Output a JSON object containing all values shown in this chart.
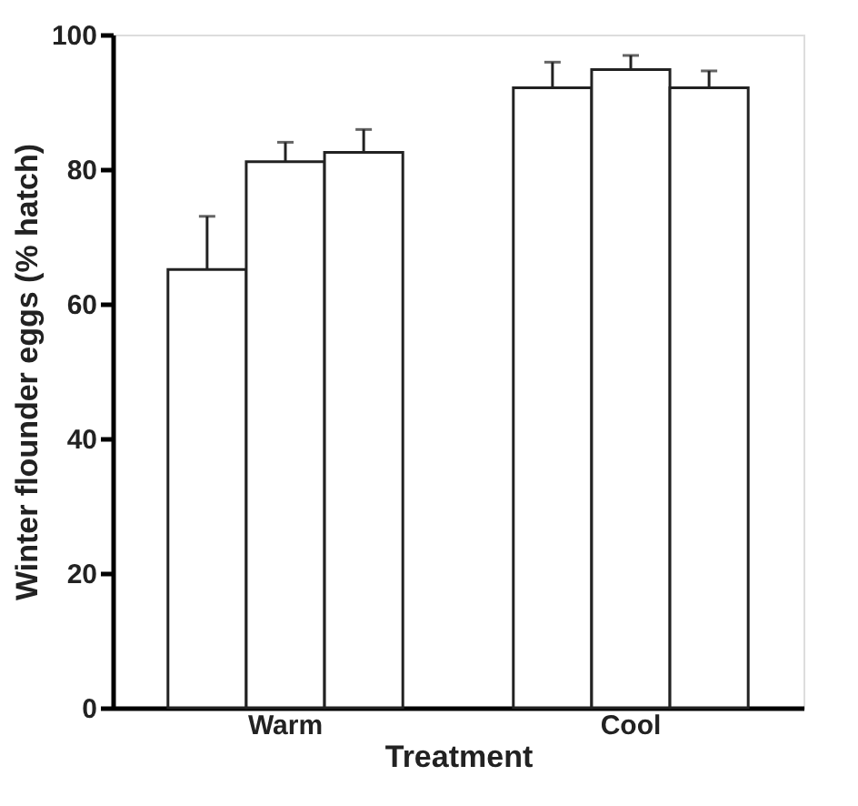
{
  "chart_data": {
    "type": "bar",
    "xlabel": "Treatment",
    "ylabel": "Winter flounder eggs  (% hatch)",
    "categories": [
      "Warm",
      "Cool"
    ],
    "series": [
      {
        "color": "#ffffff",
        "values": [
          65.1,
          92.1
        ],
        "errors": [
          [
            65.1,
            73.0
          ],
          [
            92.1,
            95.9
          ]
        ]
      },
      {
        "color": "#ffffff",
        "values": [
          81.1,
          94.8
        ],
        "errors": [
          [
            81.1,
            84.0
          ],
          [
            94.8,
            96.9
          ]
        ]
      },
      {
        "color": "#ffffff",
        "values": [
          82.5,
          92.1
        ],
        "errors": [
          [
            82.5,
            85.9
          ],
          [
            92.1,
            94.6
          ]
        ]
      }
    ],
    "ylim": [
      0,
      100
    ],
    "yticks": [
      0,
      20,
      40,
      60,
      80,
      100
    ],
    "grid": false,
    "legend": false
  }
}
